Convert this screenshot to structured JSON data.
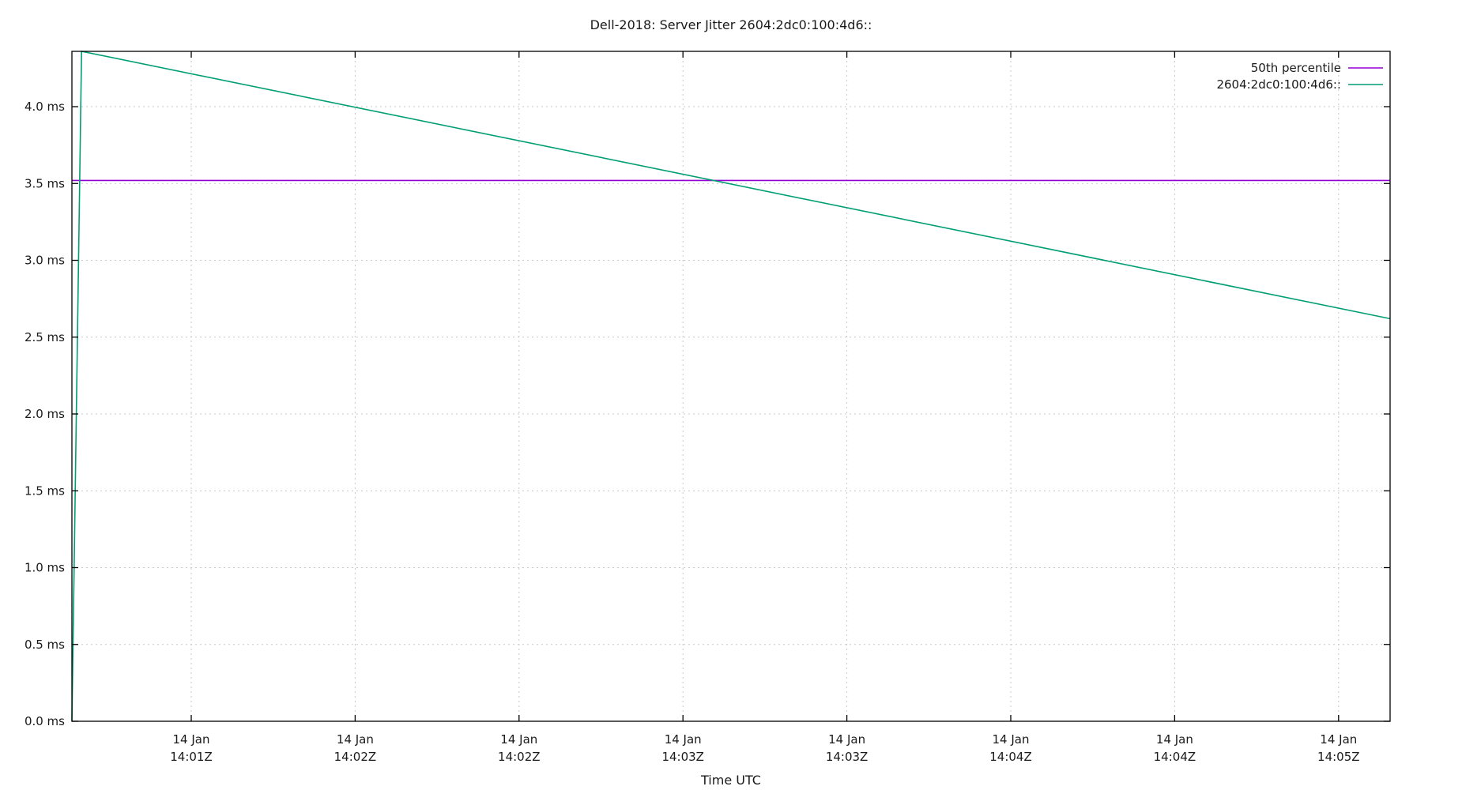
{
  "chart_data": {
    "type": "line",
    "title": "Dell-2018: Server Jitter 2604:2dc0:100:4d6::",
    "xlabel": "Time UTC",
    "ylabel": "",
    "ylim": [
      0.0,
      4.36
    ],
    "grid": true,
    "legend_position": "top-right",
    "y_ticks": [
      "0.0 ms",
      "0.5 ms",
      "1.0 ms",
      "1.5 ms",
      "2.0 ms",
      "2.5 ms",
      "3.0 ms",
      "3.5 ms",
      "4.0 ms"
    ],
    "x_ticks": [
      {
        "line1": "14 Jan",
        "line2": "14:01Z"
      },
      {
        "line1": "14 Jan",
        "line2": "14:02Z"
      },
      {
        "line1": "14 Jan",
        "line2": "14:02Z"
      },
      {
        "line1": "14 Jan",
        "line2": "14:03Z"
      },
      {
        "line1": "14 Jan",
        "line2": "14:03Z"
      },
      {
        "line1": "14 Jan",
        "line2": "14:04Z"
      },
      {
        "line1": "14 Jan",
        "line2": "14:04Z"
      },
      {
        "line1": "14 Jan",
        "line2": "14:05Z"
      }
    ],
    "series": [
      {
        "name": "50th percentile",
        "color": "#9400d3",
        "x_frac": [
          0.0,
          1.0
        ],
        "values": [
          3.52,
          3.52
        ]
      },
      {
        "name": "2604:2dc0:100:4d6::",
        "color": "#009e73",
        "x_frac": [
          0.0,
          0.0073,
          1.0
        ],
        "values": [
          0.0,
          4.36,
          2.62
        ]
      }
    ]
  }
}
